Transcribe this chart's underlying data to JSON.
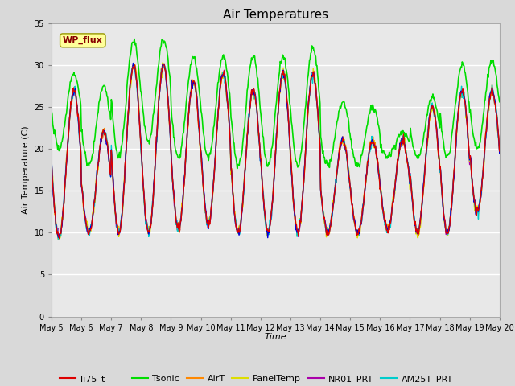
{
  "title": "Air Temperatures",
  "xlabel": "Time",
  "ylabel": "Air Temperature (C)",
  "ylim": [
    0,
    35
  ],
  "yticks": [
    0,
    5,
    10,
    15,
    20,
    25,
    30,
    35
  ],
  "n_days": 15,
  "pts_per_day": 48,
  "series": {
    "li75_t": {
      "color": "#dd0000",
      "lw": 1.0
    },
    "li77_temp": {
      "color": "#0000dd",
      "lw": 1.0
    },
    "Tsonic": {
      "color": "#00dd00",
      "lw": 1.2
    },
    "AirT": {
      "color": "#ff8800",
      "lw": 1.0
    },
    "PanelTemp": {
      "color": "#dddd00",
      "lw": 1.0
    },
    "NR01_PRT": {
      "color": "#aa00aa",
      "lw": 1.0
    },
    "AM25T_PRT": {
      "color": "#00cccc",
      "lw": 1.0
    }
  },
  "base_day_mins": [
    9.5,
    10,
    10,
    10,
    10.5,
    11,
    10,
    10,
    10,
    10,
    10,
    10.5,
    10,
    10,
    12.5
  ],
  "base_day_maxs": [
    27,
    22,
    30,
    30,
    28,
    29,
    27,
    29,
    29,
    21,
    21,
    21,
    25,
    27,
    27
  ],
  "tsonic_day_mins": [
    20,
    18,
    19,
    21,
    19,
    19,
    18,
    18,
    18,
    18,
    18,
    19,
    19,
    19,
    20
  ],
  "tsonic_day_maxs": [
    29,
    27.5,
    33,
    33,
    31,
    31,
    31,
    31,
    32,
    25.5,
    25,
    22,
    26,
    30,
    30.5
  ],
  "background_color": "#d9d9d9",
  "plot_bg": "#e8e8e8",
  "fig_bg": "#d9d9d9",
  "wp_flux_label": "WP_flux",
  "wp_flux_color": "#880000",
  "wp_flux_bg": "#ffff99",
  "wp_flux_edge": "#999900",
  "legend_ncol": 6,
  "legend_fontsize": 8
}
